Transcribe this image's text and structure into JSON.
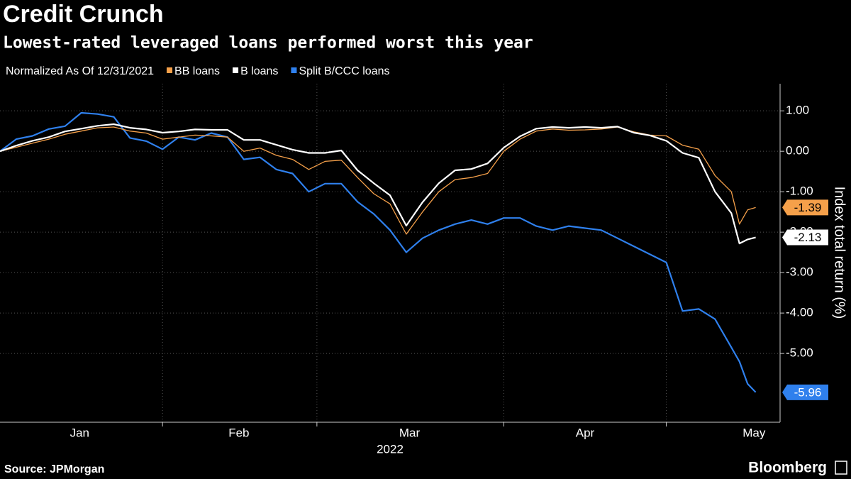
{
  "chart_data": {
    "type": "line",
    "title": "Credit Crunch",
    "subtitle": "Lowest-rated leveraged loans performed worst this year",
    "legend_note": "Normalized As Of 12/31/2021",
    "x_axis_label": "2022",
    "y_axis_label": "Index total return (%)",
    "source": "Source: JPMorgan",
    "brand": "Bloomberg",
    "x": [
      0,
      1,
      2,
      3,
      4,
      5,
      6,
      7,
      8,
      9,
      10,
      11,
      12,
      13,
      14,
      15,
      16,
      17,
      18,
      19,
      20,
      21,
      22,
      23,
      24,
      25,
      26,
      27,
      28,
      29,
      30,
      31,
      32,
      33,
      34,
      35,
      36,
      37,
      38,
      39,
      40,
      41,
      42,
      43,
      44,
      45,
      45.5,
      46,
      46.5
    ],
    "xlim": [
      0,
      48
    ],
    "month_labels": [
      {
        "value": 4.9,
        "label": "Jan"
      },
      {
        "value": 14.7,
        "label": "Feb"
      },
      {
        "value": 25.2,
        "label": "Mar"
      },
      {
        "value": 36,
        "label": "Apr"
      },
      {
        "value": 46.4,
        "label": "May"
      }
    ],
    "month_separators": [
      10,
      19.5,
      31,
      41
    ],
    "ylim": [
      -6.7,
      1.67
    ],
    "yticks": [
      {
        "value": 1,
        "label": "1.00"
      },
      {
        "value": 0,
        "label": "0.00"
      },
      {
        "value": -1,
        "label": "-1.00"
      },
      {
        "value": -2,
        "label": "-2.00"
      },
      {
        "value": -3,
        "label": "-3.00"
      },
      {
        "value": -4,
        "label": "-4.00"
      },
      {
        "value": -5,
        "label": "-5.00"
      }
    ],
    "grid": true,
    "series": [
      {
        "name": "BB loans",
        "color": "#f5a04a",
        "label_text_color": "#000",
        "values": [
          0,
          0.1,
          0.2,
          0.3,
          0.42,
          0.5,
          0.58,
          0.6,
          0.5,
          0.45,
          0.3,
          0.35,
          0.4,
          0.38,
          0.35,
          0.0,
          0.08,
          -0.1,
          -0.2,
          -0.45,
          -0.25,
          -0.22,
          -0.65,
          -1.05,
          -1.3,
          -2.05,
          -1.5,
          -1.0,
          -0.7,
          -0.65,
          -0.55,
          0.0,
          0.3,
          0.5,
          0.55,
          0.52,
          0.53,
          0.55,
          0.6,
          0.48,
          0.4,
          0.38,
          0.15,
          0.05,
          -0.6,
          -1.0,
          -1.8,
          -1.45,
          -1.39
        ]
      },
      {
        "name": "B loans",
        "color": "#ffffff",
        "label_text_color": "#000",
        "values": [
          0,
          0.14,
          0.26,
          0.35,
          0.49,
          0.56,
          0.63,
          0.67,
          0.58,
          0.54,
          0.46,
          0.49,
          0.54,
          0.53,
          0.53,
          0.28,
          0.28,
          0.16,
          0.04,
          -0.04,
          -0.04,
          0.02,
          -0.47,
          -0.79,
          -1.09,
          -1.84,
          -1.26,
          -0.79,
          -0.47,
          -0.44,
          -0.3,
          0.09,
          0.37,
          0.56,
          0.6,
          0.58,
          0.6,
          0.58,
          0.61,
          0.46,
          0.39,
          0.26,
          -0.04,
          -0.16,
          -1.0,
          -1.53,
          -2.28,
          -2.18,
          -2.13
        ]
      },
      {
        "name": "Split B/CCC loans",
        "color": "#2f80ed",
        "label_text_color": "#fff",
        "values": [
          0,
          0.3,
          0.38,
          0.55,
          0.62,
          0.95,
          0.92,
          0.85,
          0.33,
          0.25,
          0.05,
          0.35,
          0.28,
          0.45,
          0.35,
          -0.2,
          -0.15,
          -0.45,
          -0.55,
          -1.0,
          -0.8,
          -0.8,
          -1.25,
          -1.55,
          -1.95,
          -2.5,
          -2.15,
          -1.95,
          -1.8,
          -1.7,
          -1.8,
          -1.65,
          -1.65,
          -1.85,
          -1.95,
          -1.85,
          -1.9,
          -1.95,
          -2.15,
          -2.35,
          -2.55,
          -2.75,
          -3.95,
          -3.9,
          -4.15,
          -4.85,
          -5.2,
          -5.75,
          -5.96
        ]
      }
    ]
  }
}
